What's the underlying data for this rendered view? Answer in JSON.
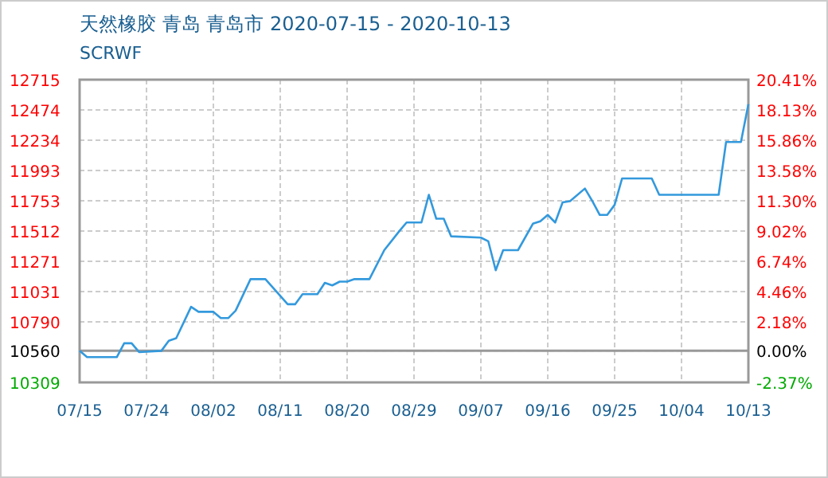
{
  "chart_data": {
    "type": "line",
    "title": "天然橡胶 青岛 青岛市 2020-07-15 - 2020-10-13",
    "subtitle": "SCRWF",
    "x": [
      "2020-07-15",
      "2020-07-16",
      "2020-07-20",
      "2020-07-21",
      "2020-07-22",
      "2020-07-23",
      "2020-07-26",
      "2020-07-27",
      "2020-07-28",
      "2020-07-30",
      "2020-07-31",
      "2020-08-02",
      "2020-08-03",
      "2020-08-04",
      "2020-08-05",
      "2020-08-07",
      "2020-08-09",
      "2020-08-12",
      "2020-08-13",
      "2020-08-14",
      "2020-08-16",
      "2020-08-17",
      "2020-08-18",
      "2020-08-19",
      "2020-08-20",
      "2020-08-21",
      "2020-08-23",
      "2020-08-25",
      "2020-08-27",
      "2020-08-28",
      "2020-08-30",
      "2020-08-31",
      "2020-09-01",
      "2020-09-02",
      "2020-09-03",
      "2020-09-07",
      "2020-09-08",
      "2020-09-09",
      "2020-09-10",
      "2020-09-12",
      "2020-09-14",
      "2020-09-15",
      "2020-09-16",
      "2020-09-17",
      "2020-09-18",
      "2020-09-19",
      "2020-09-21",
      "2020-09-22",
      "2020-09-23",
      "2020-09-24",
      "2020-09-25",
      "2020-09-26",
      "2020-09-30",
      "2020-10-01",
      "2020-10-09",
      "2020-10-10",
      "2020-10-12",
      "2020-10-13"
    ],
    "series": [
      {
        "color": "#3399dd",
        "values": [
          10560,
          10510,
          10510,
          10620,
          10620,
          10550,
          10560,
          10640,
          10660,
          10910,
          10870,
          10870,
          10820,
          10820,
          10880,
          11130,
          11130,
          10930,
          10930,
          11010,
          11010,
          11100,
          11080,
          11110,
          11110,
          11130,
          11130,
          11360,
          11510,
          11580,
          11580,
          11800,
          11610,
          11610,
          11470,
          11460,
          11430,
          11200,
          11360,
          11360,
          11570,
          11590,
          11640,
          11580,
          11740,
          11750,
          11850,
          11750,
          11640,
          11640,
          11720,
          11930,
          11930,
          11800,
          11800,
          12220,
          12220,
          12520
        ]
      }
    ],
    "xlim": [
      "2020-07-15",
      "2020-10-13"
    ],
    "xticks": [
      {
        "value": "2020-07-15",
        "label": "07/15"
      },
      {
        "value": "2020-07-24",
        "label": "07/24"
      },
      {
        "value": "2020-08-02",
        "label": "08/02"
      },
      {
        "value": "2020-08-11",
        "label": "08/11"
      },
      {
        "value": "2020-08-20",
        "label": "08/20"
      },
      {
        "value": "2020-08-29",
        "label": "08/29"
      },
      {
        "value": "2020-09-07",
        "label": "09/07"
      },
      {
        "value": "2020-09-16",
        "label": "09/16"
      },
      {
        "value": "2020-09-25",
        "label": "09/25"
      },
      {
        "value": "2020-10-04",
        "label": "10/04"
      },
      {
        "value": "2020-10-13",
        "label": "10/13"
      }
    ],
    "ylim": [
      10309,
      12715
    ],
    "yticks": [
      10309,
      10560,
      10790,
      11031,
      11271,
      11512,
      11753,
      11993,
      12234,
      12474,
      12715
    ],
    "y2lim": [
      -2.37,
      20.41
    ],
    "y2ticks": [
      {
        "value": -2.37,
        "label": "-2.37%"
      },
      {
        "value": 0,
        "label": "0.00%"
      },
      {
        "value": 2.18,
        "label": "2.18%"
      },
      {
        "value": 4.46,
        "label": "4.46%"
      },
      {
        "value": 6.74,
        "label": "6.74%"
      },
      {
        "value": 9.02,
        "label": "9.02%"
      },
      {
        "value": 11.3,
        "label": "11.30%"
      },
      {
        "value": 13.58,
        "label": "13.58%"
      },
      {
        "value": 15.86,
        "label": "15.86%"
      },
      {
        "value": 18.13,
        "label": "18.13%"
      },
      {
        "value": 20.41,
        "label": "20.41%"
      }
    ],
    "ref_lines": [
      {
        "axis": "y",
        "value": 10560,
        "color": "#999999"
      }
    ],
    "grid": true,
    "marker": "none",
    "line_style": "solid"
  }
}
